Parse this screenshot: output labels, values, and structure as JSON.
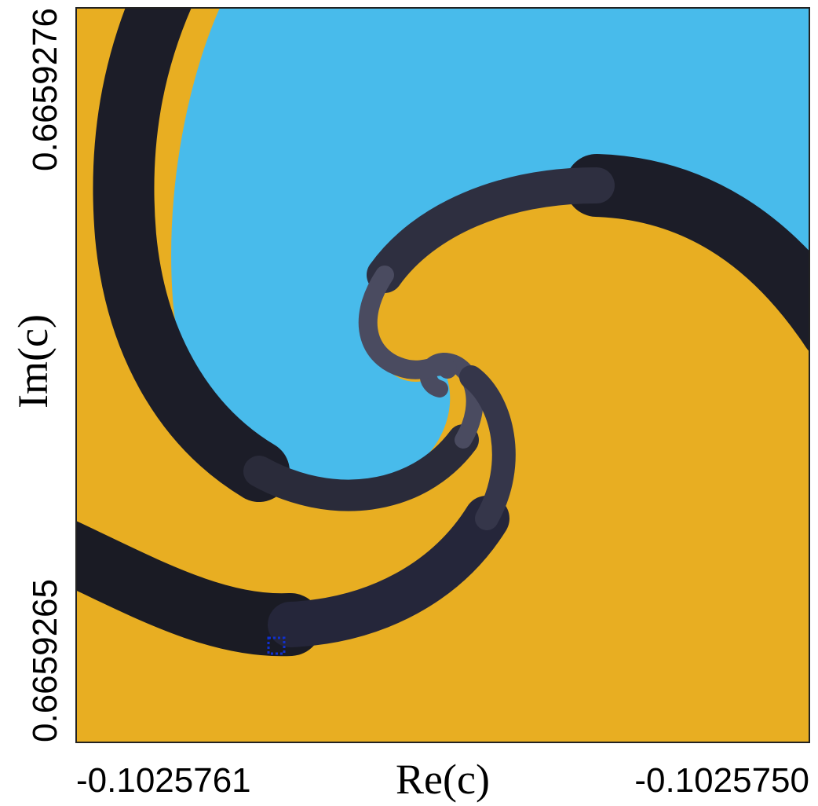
{
  "chart_data": {
    "type": "image",
    "xlabel": "Re(c)",
    "ylabel": "Im(c)",
    "xlim": [
      -0.1025761,
      {
        "value": -0.102575,
        "label": "-0.1025750"
      }
    ],
    "xticks": [
      -0.1025761,
      {
        "value": -0.102575,
        "label": "-0.1025750"
      }
    ],
    "ylim": [
      0.6659265,
      0.6659276
    ],
    "yticks": [
      0.6659265,
      0.6659276
    ]
  }
}
